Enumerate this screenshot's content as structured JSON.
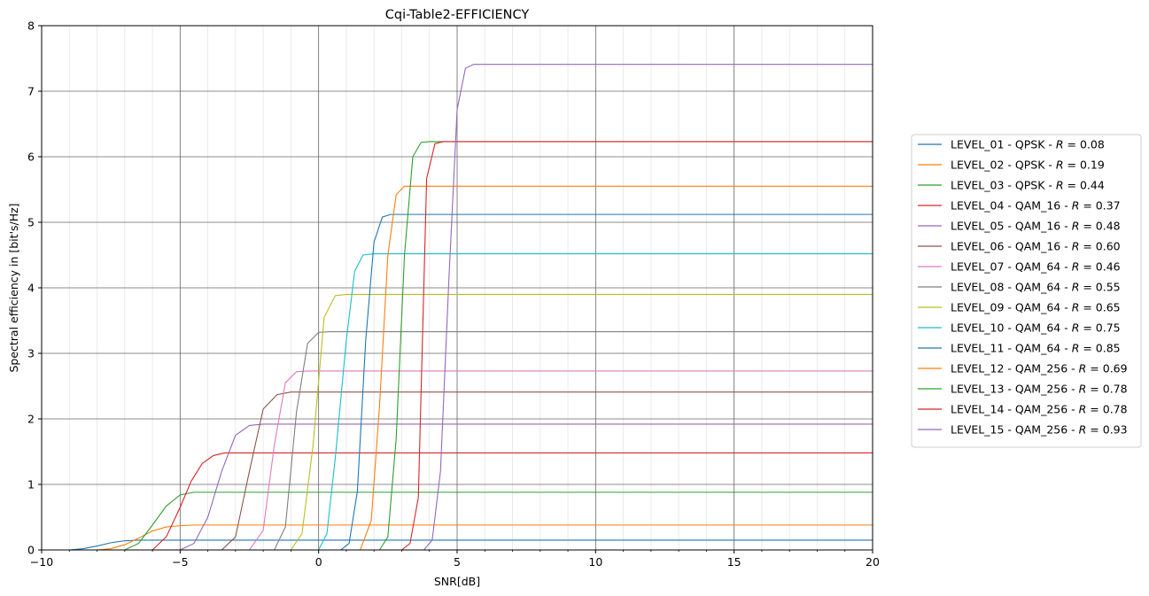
{
  "chart_data": {
    "type": "line",
    "title": "Cqi-Table2-EFFICIENCY",
    "xlabel": "SNR[dB]",
    "ylabel": "Spectral efficiency in [bit's/Hz]",
    "xlim": [
      -10,
      20
    ],
    "ylim": [
      0,
      8
    ],
    "xticks": [
      -10,
      -5,
      0,
      5,
      10,
      15,
      20
    ],
    "xtick_labels": [
      "−10",
      "−5",
      "0",
      "5",
      "10",
      "15",
      "20"
    ],
    "yticks": [
      0,
      1,
      2,
      3,
      4,
      5,
      6,
      7,
      8
    ],
    "ytick_labels": [
      "0",
      "1",
      "2",
      "3",
      "4",
      "5",
      "6",
      "7",
      "8"
    ],
    "grid": true,
    "minor_grid": true,
    "legend_position": "right-outside",
    "series": [
      {
        "name": "LEVEL_01 - QPSK - ",
        "r": "0.08",
        "color": "#1f77b4",
        "x": [
          -10,
          -9,
          -8.5,
          -8,
          -7.5,
          -7,
          -6.5,
          -6,
          20
        ],
        "y": [
          0,
          0,
          0.02,
          0.06,
          0.11,
          0.14,
          0.15,
          0.15,
          0.15
        ]
      },
      {
        "name": "LEVEL_02 - QPSK - ",
        "r": "0.19",
        "color": "#ff7f0e",
        "x": [
          -10,
          -8,
          -7.5,
          -7,
          -6.5,
          -6,
          -5.5,
          -5,
          -4.5,
          20
        ],
        "y": [
          0,
          0,
          0.02,
          0.08,
          0.18,
          0.29,
          0.35,
          0.37,
          0.38,
          0.38
        ]
      },
      {
        "name": "LEVEL_03 - QPSK - ",
        "r": "0.44",
        "color": "#2ca02c",
        "x": [
          -10,
          -7,
          -6.5,
          -6,
          -5.5,
          -5,
          -4.5,
          20
        ],
        "y": [
          0,
          0,
          0.1,
          0.38,
          0.67,
          0.84,
          0.88,
          0.88
        ]
      },
      {
        "name": "LEVEL_04 - QAM_16 - ",
        "r": "0.37",
        "color": "#d62728",
        "x": [
          -10,
          -6,
          -5.5,
          -5,
          -4.6,
          -4.2,
          -3.8,
          -3.4,
          20
        ],
        "y": [
          0,
          0,
          0.2,
          0.65,
          1.05,
          1.32,
          1.44,
          1.48,
          1.48
        ]
      },
      {
        "name": "LEVEL_05 - QAM_16 - ",
        "r": "0.48",
        "color": "#9467bd",
        "x": [
          -10,
          -5,
          -4.5,
          -4,
          -3.5,
          -3,
          -2.5,
          -2,
          20
        ],
        "y": [
          0,
          0,
          0.1,
          0.5,
          1.2,
          1.75,
          1.9,
          1.92,
          1.92
        ]
      },
      {
        "name": "LEVEL_06 - QAM_16 - ",
        "r": "0.60",
        "color": "#8c564b",
        "x": [
          -10,
          -3.5,
          -3,
          -2.5,
          -2,
          -1.5,
          -1,
          20
        ],
        "y": [
          0,
          0,
          0.2,
          1.2,
          2.15,
          2.37,
          2.41,
          2.41
        ]
      },
      {
        "name": "LEVEL_07 - QAM_64 - ",
        "r": "0.46",
        "color": "#e377c2",
        "x": [
          -10,
          -2.5,
          -2,
          -1.6,
          -1.2,
          -0.8,
          -0.4,
          20
        ],
        "y": [
          0,
          0,
          0.3,
          1.6,
          2.55,
          2.72,
          2.73,
          2.73
        ]
      },
      {
        "name": "LEVEL_08 - QAM_64 - ",
        "r": "0.55",
        "color": "#7f7f7f",
        "x": [
          -10,
          -1.6,
          -1.2,
          -0.8,
          -0.4,
          0,
          0.4,
          20
        ],
        "y": [
          0,
          0,
          0.35,
          2.1,
          3.15,
          3.32,
          3.33,
          3.33
        ]
      },
      {
        "name": "LEVEL_09 - QAM_64 - ",
        "r": "0.65",
        "color": "#bcbd22",
        "x": [
          -10,
          -1,
          -0.6,
          -0.2,
          0.2,
          0.6,
          1.0,
          20
        ],
        "y": [
          0,
          0,
          0.25,
          1.6,
          3.55,
          3.88,
          3.9,
          3.9
        ]
      },
      {
        "name": "LEVEL_10 - QAM_64 - ",
        "r": "0.75",
        "color": "#17becf",
        "x": [
          -10,
          0,
          0.3,
          0.6,
          1.0,
          1.3,
          1.6,
          2.0,
          20
        ],
        "y": [
          0,
          0,
          0.25,
          1.4,
          3.2,
          4.25,
          4.5,
          4.52,
          4.52
        ]
      },
      {
        "name": "LEVEL_11 - QAM_64 - ",
        "r": "0.85",
        "color": "#1f77b4",
        "x": [
          -10,
          0.8,
          1.1,
          1.4,
          1.7,
          2.0,
          2.3,
          2.6,
          20
        ],
        "y": [
          0,
          0,
          0.1,
          0.9,
          3.2,
          4.7,
          5.08,
          5.12,
          5.12
        ]
      },
      {
        "name": "LEVEL_12 - QAM_256 - ",
        "r": "0.69",
        "color": "#ff7f0e",
        "x": [
          -10,
          1.5,
          1.9,
          2.2,
          2.5,
          2.8,
          3.1,
          3.4,
          20
        ],
        "y": [
          0,
          0,
          0.45,
          2.2,
          4.5,
          5.42,
          5.55,
          5.55,
          5.55
        ]
      },
      {
        "name": "LEVEL_13 - QAM_256 - ",
        "r": "0.78",
        "color": "#2ca02c",
        "x": [
          -10,
          2.2,
          2.5,
          2.8,
          3.1,
          3.4,
          3.7,
          4.0,
          20
        ],
        "y": [
          0,
          0,
          0.2,
          1.7,
          4.5,
          6.0,
          6.22,
          6.23,
          6.23
        ]
      },
      {
        "name": "LEVEL_14 - QAM_256 - ",
        "r": "0.78",
        "color": "#d62728",
        "x": [
          -10,
          3,
          3.3,
          3.6,
          3.9,
          4.2,
          4.5,
          20
        ],
        "y": [
          0,
          0,
          0.1,
          0.8,
          5.67,
          6.2,
          6.23,
          6.23
        ]
      },
      {
        "name": "LEVEL_15 - QAM_256 - ",
        "r": "0.93",
        "color": "#9467bd",
        "x": [
          -10,
          3.8,
          4.1,
          4.4,
          4.7,
          5.0,
          5.3,
          5.6,
          20
        ],
        "y": [
          0,
          0,
          0.15,
          1.2,
          4.1,
          6.72,
          7.35,
          7.41,
          7.41
        ]
      }
    ]
  }
}
